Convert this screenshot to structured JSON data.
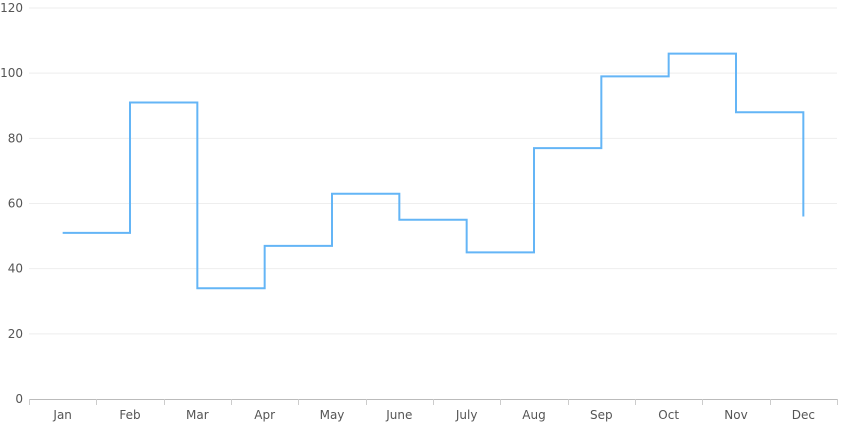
{
  "chart_data": {
    "type": "line",
    "interpolation": "step-after",
    "categories": [
      "Jan",
      "Feb",
      "Mar",
      "Apr",
      "May",
      "June",
      "July",
      "Aug",
      "Sep",
      "Oct",
      "Nov",
      "Dec"
    ],
    "values": [
      51,
      91,
      34,
      47,
      63,
      55,
      45,
      77,
      99,
      106,
      88,
      56
    ],
    "title": "",
    "xlabel": "",
    "ylabel": "",
    "ylim": [
      0,
      120
    ],
    "yticks": [
      0,
      20,
      40,
      60,
      80,
      100,
      120
    ],
    "grid": true,
    "legend": "none",
    "line_color": "#64b5f6"
  }
}
